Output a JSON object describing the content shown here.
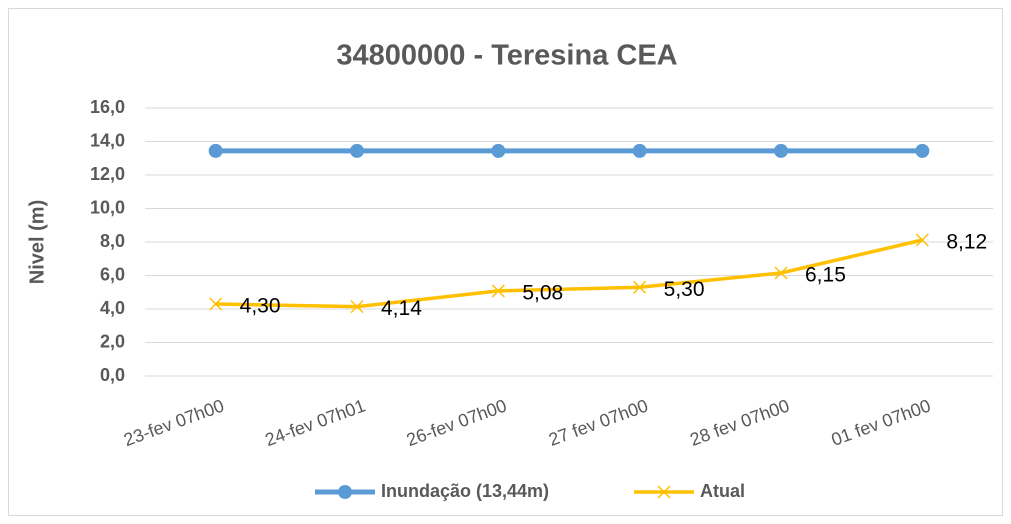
{
  "chart_data": {
    "type": "line",
    "title": "34800000  - Teresina CEA",
    "ylabel": "Nivel (m)",
    "categories": [
      "23-fev 07h00",
      "24-fev 07h01",
      "26-fev 07h00",
      "27 fev 07h00",
      "28 fev 07h00",
      "01 fev 07h00"
    ],
    "series": [
      {
        "name": "Inundação (13,44m)",
        "color": "#5b9bd5",
        "marker": "circle",
        "values": [
          13.44,
          13.44,
          13.44,
          13.44,
          13.44,
          13.44
        ]
      },
      {
        "name": "Atual",
        "color": "#ffc000",
        "marker": "x",
        "values": [
          4.3,
          4.14,
          5.08,
          5.3,
          6.15,
          8.12
        ],
        "value_labels": [
          "4,30",
          "4,14",
          "5,08",
          "5,30",
          "6,15",
          "8,12"
        ]
      }
    ],
    "ylim": [
      0,
      16
    ],
    "yticks": [
      {
        "value": 0,
        "label": "0,0"
      },
      {
        "value": 2,
        "label": "2,0"
      },
      {
        "value": 4,
        "label": "4,0"
      },
      {
        "value": 6,
        "label": "6,0"
      },
      {
        "value": 8,
        "label": "8,0"
      },
      {
        "value": 10,
        "label": "10,0"
      },
      {
        "value": 12,
        "label": "12,0"
      },
      {
        "value": 14,
        "label": "14,0"
      },
      {
        "value": 16,
        "label": "16,0"
      }
    ],
    "grid": true,
    "legend": "bottom"
  }
}
